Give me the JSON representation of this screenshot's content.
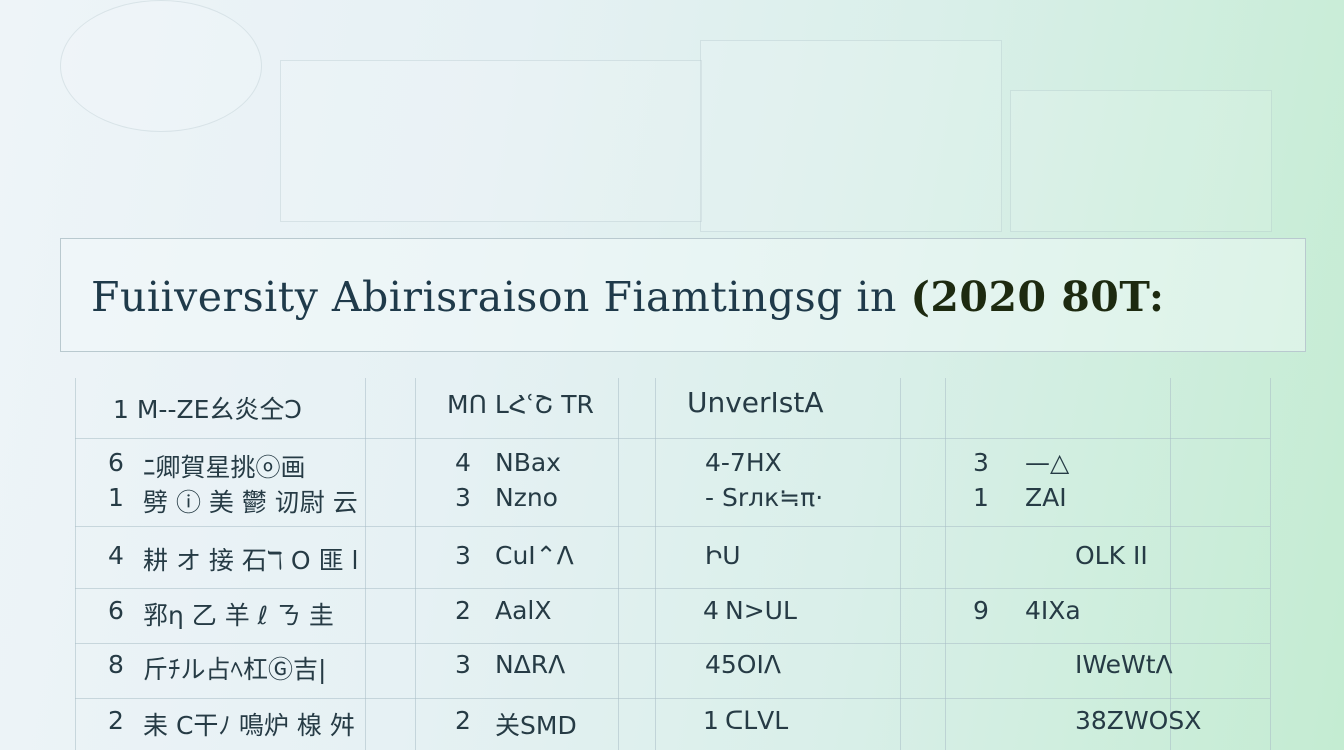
{
  "title": {
    "text": "Fuiiversity Abirisraison Fiamtingsg in",
    "year": "(2020 80T:"
  },
  "table": {
    "headers": [
      "1 M--ZE幺炎仝Ↄ",
      "MՈ LՀՙՇ TR",
      "UnverIstA",
      ""
    ],
    "rows": [
      {
        "c1": {
          "num": "6",
          "text": "ﾆ卿賀星挑ⓞ画"
        },
        "c2": {
          "num": "4",
          "text": "NBax"
        },
        "c3": {
          "num": "",
          "text": "4-7HX"
        },
        "c4": {
          "num": "3",
          "text": "—△"
        }
      },
      {
        "c1": {
          "num": "1",
          "text": "劈 ⓘ 美 鬱 讱尉 云"
        },
        "c2": {
          "num": "3",
          "text": "Nzno"
        },
        "c3": {
          "num": "",
          "text": "- Srлк≒π·"
        },
        "c4": {
          "num": "1",
          "text": "ZAI"
        }
      },
      {
        "c1": {
          "num": "4",
          "text": "耕 オ 接 石ℸ O 匪 l"
        },
        "c2": {
          "num": "3",
          "text": "CuI⌃Λ"
        },
        "c3": {
          "num": "",
          "text": "ԻU"
        },
        "c4": {
          "num": "",
          "text": "OLK II"
        }
      },
      {
        "c1": {
          "num": "6",
          "text": "郛ƞ 乙 羊 ℓ ㄋ 圭"
        },
        "c2": {
          "num": "2",
          "text": "AalX"
        },
        "c3": {
          "num": "4",
          "text": "N>UL"
        },
        "c4": {
          "num": "9",
          "text": "4IXa"
        }
      },
      {
        "c1": {
          "num": "8",
          "text": "斤ﾁル占ﾍ杠Ⓖ吉|"
        },
        "c2": {
          "num": "3",
          "text": "NΔRΛ"
        },
        "c3": {
          "num": "",
          "text": "45OIΛ"
        },
        "c4": {
          "num": "",
          "text": "IWeWtΛ"
        }
      },
      {
        "c1": {
          "num": "2",
          "text": "耒 C干ﾉ 鳴炉 楾 舛"
        },
        "c2": {
          "num": "2",
          "text": "关SMD"
        },
        "c3": {
          "num": "1",
          "text": "ᑕᒪVL"
        },
        "c4": {
          "num": "",
          "text": "38ZWOSX"
        }
      }
    ]
  }
}
